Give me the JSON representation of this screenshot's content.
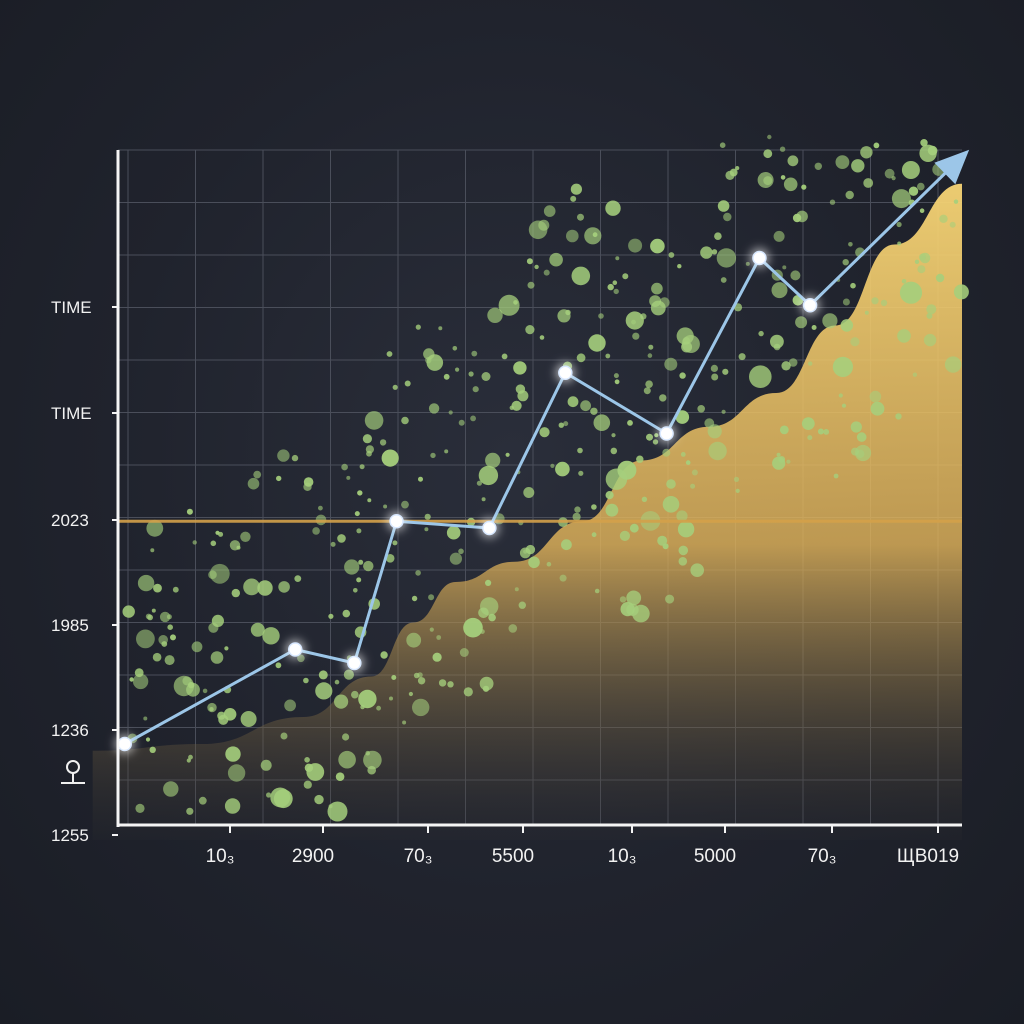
{
  "chart_data": {
    "type": "line",
    "title": "",
    "xlabel": "",
    "ylabel": "",
    "x_tick_labels": [
      "10₃",
      "2900",
      "70₃",
      "5500",
      "10₃",
      "5000",
      "70₃",
      "ЩВ019"
    ],
    "y_tick_labels": [
      "1255",
      "1236",
      "1985",
      "2023",
      "TIME",
      "TIME"
    ],
    "xlim": [
      0,
      100
    ],
    "ylim": [
      0,
      100
    ],
    "grid": true,
    "reference_line": {
      "y": 45,
      "color": "#d4a14a"
    },
    "series": [
      {
        "role": "trend-line",
        "color": "#9cc6e8",
        "marker_color": "#ffffff",
        "points": [
          [
            0.8,
            12
          ],
          [
            21,
            26
          ],
          [
            28,
            24
          ],
          [
            33,
            45
          ],
          [
            44,
            44
          ],
          [
            53,
            67
          ],
          [
            65,
            58
          ],
          [
            76,
            84
          ],
          [
            82,
            77
          ],
          [
            100,
            99
          ]
        ]
      },
      {
        "role": "area",
        "color": "#f3cd6a",
        "points": [
          [
            -3,
            11
          ],
          [
            10,
            12
          ],
          [
            22,
            16
          ],
          [
            30,
            22
          ],
          [
            35,
            30
          ],
          [
            40,
            36
          ],
          [
            47,
            39
          ],
          [
            55,
            45
          ],
          [
            62,
            54
          ],
          [
            70,
            59
          ],
          [
            78,
            64
          ],
          [
            85,
            74
          ],
          [
            92,
            86
          ],
          [
            100,
            95
          ]
        ]
      }
    ],
    "scatter_color": "#a5cf7c"
  }
}
